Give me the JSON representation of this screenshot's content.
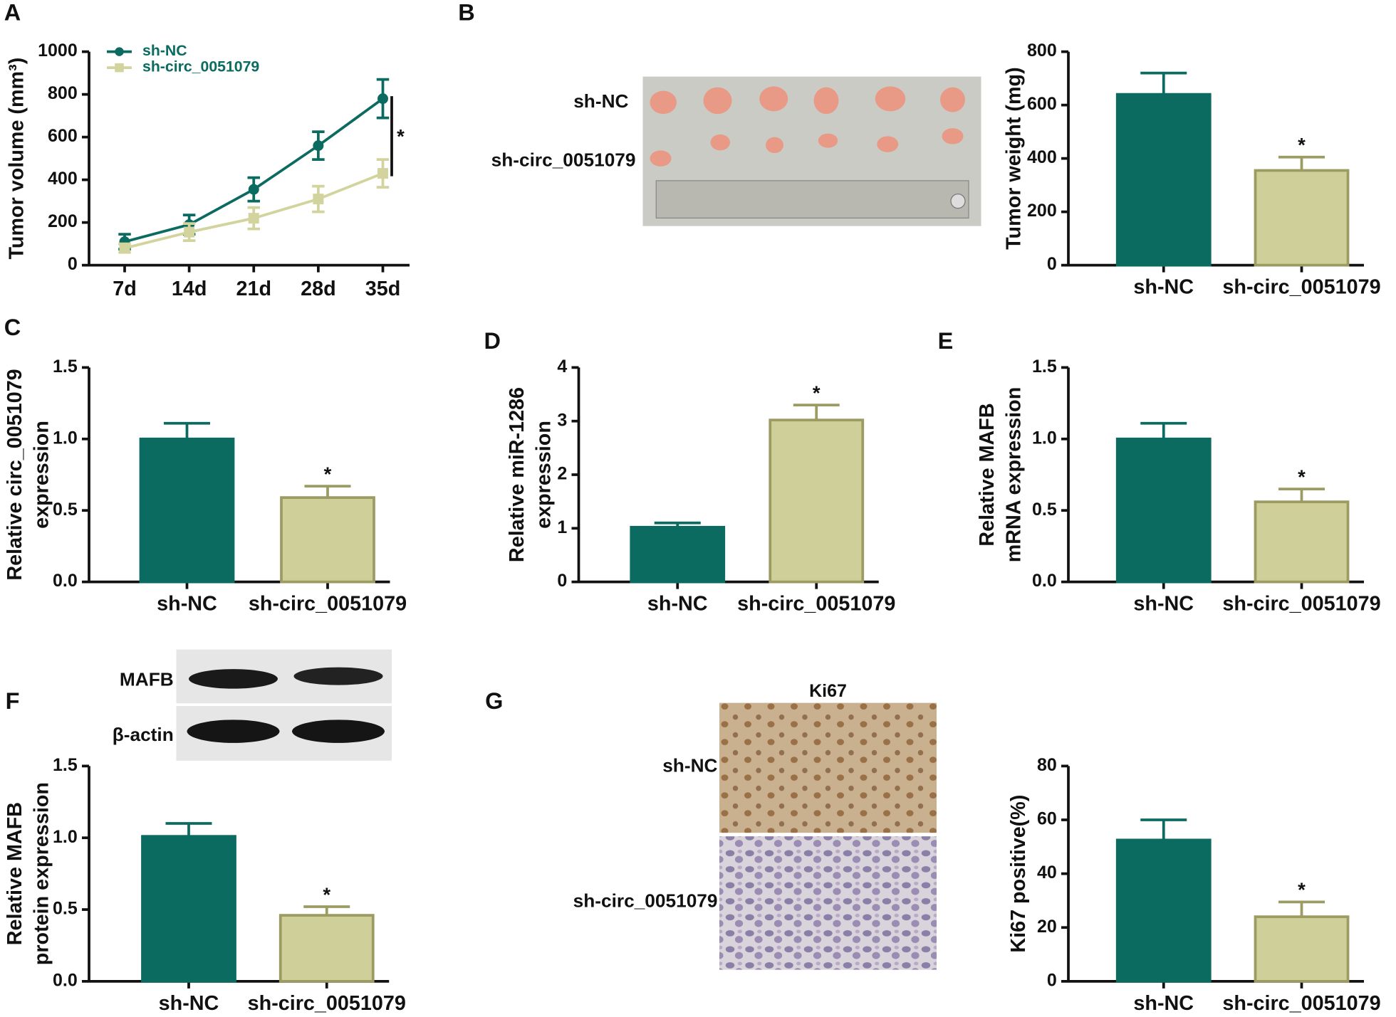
{
  "chart_data": [
    {
      "type": "line",
      "panel": "A",
      "ylabel": "Tumor volume (mm³)",
      "categories": [
        "7d",
        "14d",
        "21d",
        "28d",
        "35d"
      ],
      "series": [
        {
          "name": "sh-NC",
          "color": "#0b6b61",
          "marker": "circle",
          "values": [
            110,
            190,
            355,
            560,
            780
          ],
          "errors": [
            35,
            45,
            55,
            65,
            90
          ]
        },
        {
          "name": "sh-circ_0051079",
          "color": "#d3d39e",
          "marker": "square",
          "values": [
            80,
            155,
            220,
            310,
            430
          ],
          "errors": [
            20,
            40,
            50,
            60,
            65
          ]
        }
      ],
      "ylim": [
        0,
        1000
      ],
      "yticks": [
        0,
        200,
        400,
        600,
        800,
        1000
      ],
      "annotation": "*"
    },
    {
      "type": "bar",
      "panel": "B",
      "ylabel": "Tumor weight (mg)",
      "categories": [
        "sh-NC",
        "sh-circ_0051079"
      ],
      "values": [
        640,
        355
      ],
      "errors": [
        80,
        50
      ],
      "colors": [
        "#0b6b61",
        "#cfcf99"
      ],
      "edge_colors": [
        "#0b6b61",
        "#9b9b62"
      ],
      "annotations": [
        null,
        "*"
      ],
      "ylim": [
        0,
        800
      ],
      "yticks": [
        0,
        200,
        400,
        600,
        800
      ]
    },
    {
      "type": "bar",
      "panel": "C",
      "ylabel": [
        "Relative circ_0051079",
        "expression"
      ],
      "categories": [
        "sh-NC",
        "sh-circ_0051079"
      ],
      "values": [
        1.0,
        0.59
      ],
      "errors": [
        0.11,
        0.08
      ],
      "colors": [
        "#0b6b61",
        "#cfcf99"
      ],
      "edge_colors": [
        "#0b6b61",
        "#9b9b62"
      ],
      "annotations": [
        null,
        "*"
      ],
      "ylim": [
        0,
        1.5
      ],
      "yticks": [
        {
          "value": 0,
          "label": "0.0"
        },
        0.5,
        {
          "value": 1,
          "label": "1.0"
        },
        1.5
      ]
    },
    {
      "type": "bar",
      "panel": "D",
      "ylabel": [
        "Relative miR-1286",
        "expression"
      ],
      "categories": [
        "sh-NC",
        "sh-circ_0051079"
      ],
      "values": [
        1.02,
        3.02
      ],
      "errors": [
        0.08,
        0.28
      ],
      "colors": [
        "#0b6b61",
        "#cfcf99"
      ],
      "edge_colors": [
        "#0b6b61",
        "#9b9b62"
      ],
      "annotations": [
        null,
        "*"
      ],
      "ylim": [
        0,
        4
      ],
      "yticks": [
        0,
        1,
        2,
        3,
        4
      ]
    },
    {
      "type": "bar",
      "panel": "E",
      "ylabel": [
        "Relative MAFB",
        "mRNA expression"
      ],
      "categories": [
        "sh-NC",
        "sh-circ_0051079"
      ],
      "values": [
        1.0,
        0.56
      ],
      "errors": [
        0.11,
        0.09
      ],
      "colors": [
        "#0b6b61",
        "#cfcf99"
      ],
      "edge_colors": [
        "#0b6b61",
        "#9b9b62"
      ],
      "annotations": [
        null,
        "*"
      ],
      "ylim": [
        0,
        1.5
      ],
      "yticks": [
        {
          "value": 0,
          "label": "0.0"
        },
        0.5,
        {
          "value": 1,
          "label": "1.0"
        },
        1.5
      ]
    },
    {
      "type": "bar",
      "panel": "F",
      "ylabel": [
        "Relative  MAFB",
        "protein expression"
      ],
      "categories": [
        "sh-NC",
        "sh-circ_0051079"
      ],
      "values": [
        1.01,
        0.46
      ],
      "errors": [
        0.09,
        0.06
      ],
      "colors": [
        "#0b6b61",
        "#cfcf99"
      ],
      "edge_colors": [
        "#0b6b61",
        "#9b9b62"
      ],
      "annotations": [
        null,
        "*"
      ],
      "ylim": [
        0,
        1.5
      ],
      "yticks": [
        {
          "value": 0,
          "label": "0.0"
        },
        0.5,
        {
          "value": 1,
          "label": "1.0"
        },
        1.5
      ]
    },
    {
      "type": "bar",
      "panel": "G",
      "ylabel": "Ki67 positive(%)",
      "categories": [
        "sh-NC",
        "sh-circ_0051079"
      ],
      "values": [
        52.5,
        24
      ],
      "errors": [
        7.5,
        5.5
      ],
      "colors": [
        "#0b6b61",
        "#cfcf99"
      ],
      "edge_colors": [
        "#0b6b61",
        "#9b9b62"
      ],
      "annotations": [
        null,
        "*"
      ],
      "ylim": [
        0,
        80
      ],
      "yticks": [
        0,
        20,
        40,
        60,
        80
      ]
    }
  ],
  "images": {
    "tumor_photo": {
      "row_labels": [
        "sh-NC",
        "sh-circ_0051079"
      ]
    },
    "western_blot": {
      "row_labels": [
        "MAFB",
        "β-actin"
      ]
    },
    "ihc": {
      "title": "Ki67",
      "row_labels": [
        "sh-NC",
        "sh-circ_0051079"
      ]
    }
  }
}
